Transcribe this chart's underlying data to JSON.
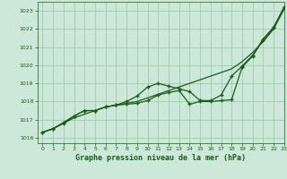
{
  "title": "Graphe pression niveau de la mer (hPa)",
  "bg_color": "#cce8d8",
  "grid_color": "#99c4aa",
  "line_color": "#1a5c1a",
  "xlim": [
    -0.5,
    23
  ],
  "ylim": [
    1015.7,
    1023.5
  ],
  "xticks": [
    0,
    1,
    2,
    3,
    4,
    5,
    6,
    7,
    8,
    9,
    10,
    11,
    12,
    13,
    14,
    15,
    16,
    17,
    18,
    19,
    20,
    21,
    22,
    23
  ],
  "yticks": [
    1016,
    1017,
    1018,
    1019,
    1020,
    1021,
    1022,
    1023
  ],
  "series_straight": {
    "x": [
      0,
      1,
      2,
      3,
      4,
      5,
      6,
      7,
      8,
      9,
      10,
      11,
      12,
      13,
      14,
      15,
      16,
      17,
      18,
      19,
      20,
      21,
      22,
      23
    ],
    "y": [
      1016.3,
      1016.5,
      1016.8,
      1017.1,
      1017.3,
      1017.5,
      1017.7,
      1017.8,
      1017.9,
      1018.0,
      1018.2,
      1018.4,
      1018.6,
      1018.8,
      1019.0,
      1019.2,
      1019.4,
      1019.6,
      1019.8,
      1020.2,
      1020.7,
      1021.3,
      1022.0,
      1023.1
    ]
  },
  "series_high": {
    "x": [
      0,
      1,
      2,
      3,
      4,
      5,
      6,
      7,
      8,
      9,
      10,
      11,
      12,
      13,
      14,
      15,
      16,
      17,
      18,
      19,
      20,
      21,
      22,
      23
    ],
    "y": [
      1016.3,
      1016.5,
      1016.8,
      1017.2,
      1017.5,
      1017.5,
      1017.7,
      1017.8,
      1018.0,
      1018.3,
      1018.8,
      1019.0,
      1018.85,
      1018.7,
      1018.55,
      1018.05,
      1018.05,
      1018.35,
      1019.4,
      1019.95,
      1020.55,
      1021.45,
      1022.1,
      1023.2
    ]
  },
  "series_low": {
    "x": [
      0,
      1,
      2,
      3,
      4,
      5,
      6,
      7,
      8,
      9,
      10,
      11,
      12,
      13,
      14,
      15,
      16,
      17,
      18,
      19,
      20,
      21,
      22,
      23
    ],
    "y": [
      1016.3,
      1016.5,
      1016.85,
      1017.2,
      1017.5,
      1017.5,
      1017.7,
      1017.8,
      1017.85,
      1017.9,
      1018.05,
      1018.35,
      1018.5,
      1018.6,
      1017.85,
      1018.0,
      1018.0,
      1018.05,
      1018.1,
      1019.9,
      1020.5,
      1021.4,
      1022.05,
      1023.2
    ]
  }
}
